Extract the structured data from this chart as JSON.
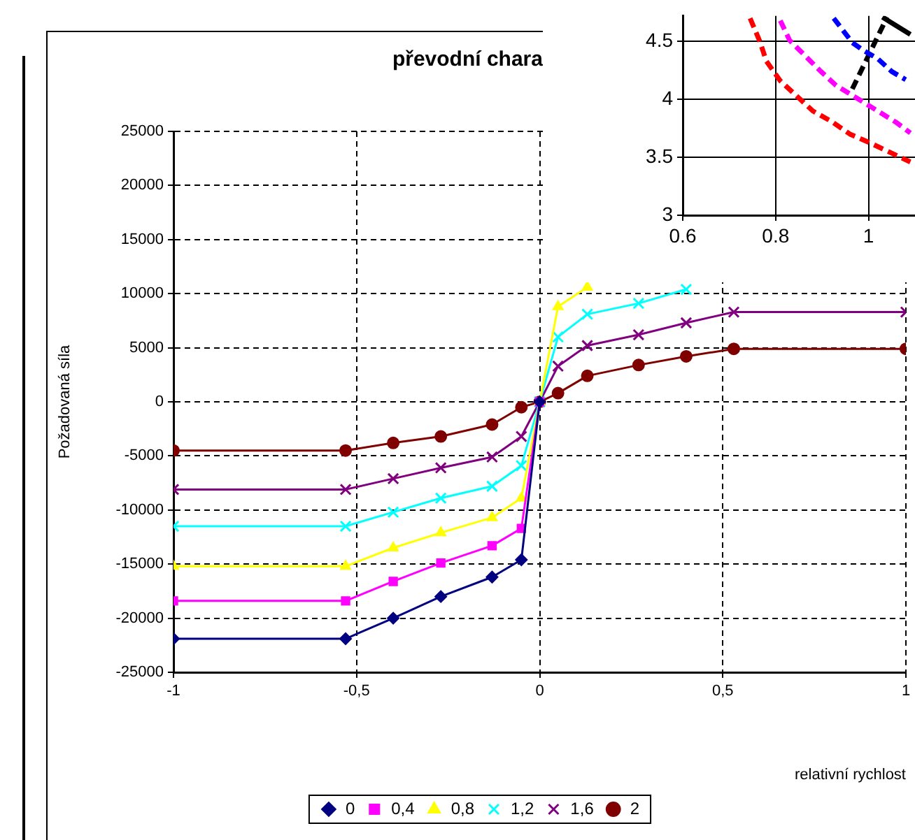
{
  "chart_data": [
    {
      "type": "line",
      "title": "převodní chara",
      "xlabel": "relativní rychlost",
      "ylabel": "Požadovaná síla",
      "x": [
        -1,
        -0.53,
        -0.4,
        -0.27,
        -0.13,
        -0.05,
        0,
        0.05,
        0.13,
        0.27,
        0.4,
        0.53,
        1
      ],
      "xlim": [
        -1,
        1
      ],
      "xticks": [
        -1,
        {
          "value": -0.5,
          "label": "-0,5"
        },
        0,
        {
          "value": 0.5,
          "label": "0,5"
        },
        1
      ],
      "ylim": [
        -25000,
        25000
      ],
      "yticks": [
        -25000,
        -20000,
        -15000,
        -10000,
        -5000,
        0,
        5000,
        10000,
        15000,
        20000,
        25000
      ],
      "grid": true,
      "legend": "bottom",
      "line_style": "solid",
      "series": [
        {
          "name": "0",
          "color": "#000080",
          "marker": "diamond",
          "values": [
            -21900,
            -21900,
            -20000,
            -18000,
            -16200,
            -14600,
            0,
            null,
            null,
            null,
            null,
            null,
            null
          ]
        },
        {
          "name": "0,4",
          "color": "#ff00ff",
          "marker": "square",
          "values": [
            -18400,
            -18400,
            -16600,
            -14900,
            -13300,
            -11700,
            0,
            null,
            null,
            null,
            null,
            null,
            null
          ]
        },
        {
          "name": "0,8",
          "color": "#ffff00",
          "marker": "triangle",
          "values": [
            -15200,
            -15200,
            -13500,
            -12100,
            -10700,
            -8900,
            0,
            8800,
            10600,
            null,
            null,
            null,
            null
          ]
        },
        {
          "name": "1,2",
          "color": "#00ffff",
          "marker": "cross",
          "values": [
            -11500,
            -11500,
            -10200,
            -8900,
            -7800,
            -5900,
            0,
            6000,
            8100,
            9100,
            10400,
            null,
            null
          ]
        },
        {
          "name": "1,6",
          "color": "#800080",
          "marker": "cross",
          "values": [
            -8100,
            -8100,
            -7100,
            -6100,
            -5100,
            -3200,
            0,
            3300,
            5200,
            6200,
            7300,
            8300,
            8300
          ]
        },
        {
          "name": "2",
          "color": "#800000",
          "marker": "circle",
          "values": [
            -4500,
            -4500,
            -3800,
            -3200,
            -2100,
            -500,
            0,
            800,
            2400,
            3400,
            4200,
            4900,
            4900
          ]
        }
      ]
    },
    {
      "type": "line",
      "xlim": [
        0.6,
        1.1
      ],
      "xticks": [
        0.6,
        0.8,
        1
      ],
      "ylim": [
        3,
        4.72
      ],
      "yticks": [
        3,
        3.5,
        4,
        4.5
      ],
      "grid": true,
      "marker": "none",
      "line_style": "dashed",
      "series": [
        {
          "color": "#ff0000",
          "x": [
            0.745,
            0.766,
            0.78,
            0.81,
            0.88,
            0.92,
            0.96,
            1.0,
            1.09
          ],
          "values": [
            4.7,
            4.5,
            4.33,
            4.16,
            3.9,
            3.81,
            3.7,
            3.63,
            3.46
          ]
        },
        {
          "color": "#ff00ff",
          "x": [
            0.81,
            0.83,
            0.895,
            0.93,
            0.975,
            1.06,
            1.09
          ],
          "values": [
            4.68,
            4.51,
            4.25,
            4.12,
            4.01,
            3.8,
            3.71
          ]
        },
        {
          "color": "#0000ff",
          "x": [
            0.925,
            0.965,
            0.99,
            1.02,
            1.05,
            1.08
          ],
          "values": [
            4.7,
            4.49,
            4.42,
            4.35,
            4.24,
            4.17
          ]
        },
        {
          "color": "#000000",
          "x": [
            1.03,
            1.09
          ],
          "values": [
            4.71,
            4.56
          ],
          "line_style": "solid"
        },
        {
          "color": "#000000",
          "x": [
            0.965,
            1.04
          ],
          "values": [
            4.09,
            4.71
          ]
        }
      ]
    }
  ]
}
